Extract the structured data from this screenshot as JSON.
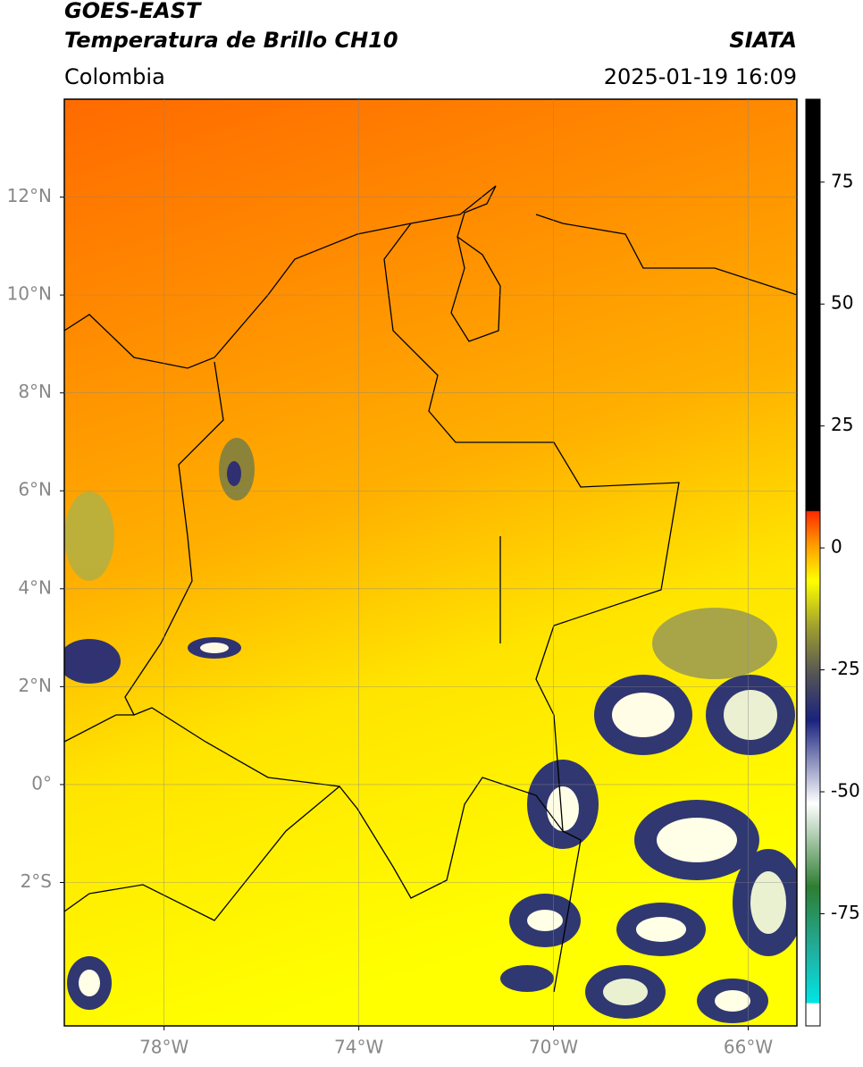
{
  "chart_data": {
    "type": "map",
    "title": "GOES-EAST",
    "subtitle": "Temperatura de Brillo CH10",
    "source": "SIATA",
    "region": "Colombia",
    "datetime": "2025-01-19 16:09",
    "xlim": [
      -80.05,
      -65.0
    ],
    "ylim": [
      -4.93,
      14.0
    ],
    "xticks": [
      {
        "value": -78,
        "label": "78°W"
      },
      {
        "value": -74,
        "label": "74°W"
      },
      {
        "value": -70,
        "label": "70°W"
      },
      {
        "value": -66,
        "label": "66°W"
      }
    ],
    "yticks": [
      {
        "value": 12,
        "label": "12°N"
      },
      {
        "value": 10,
        "label": "10°N"
      },
      {
        "value": 8,
        "label": "8°N"
      },
      {
        "value": 6,
        "label": "6°N"
      },
      {
        "value": 4,
        "label": "4°N"
      },
      {
        "value": 2,
        "label": "2°N"
      },
      {
        "value": 0,
        "label": "0°"
      },
      {
        "value": -2,
        "label": "2°S"
      }
    ],
    "grid": true,
    "colorbar": {
      "lim": [
        -98,
        92
      ],
      "ticks": [
        75,
        50,
        25,
        0,
        -25,
        -50,
        -75
      ]
    }
  }
}
